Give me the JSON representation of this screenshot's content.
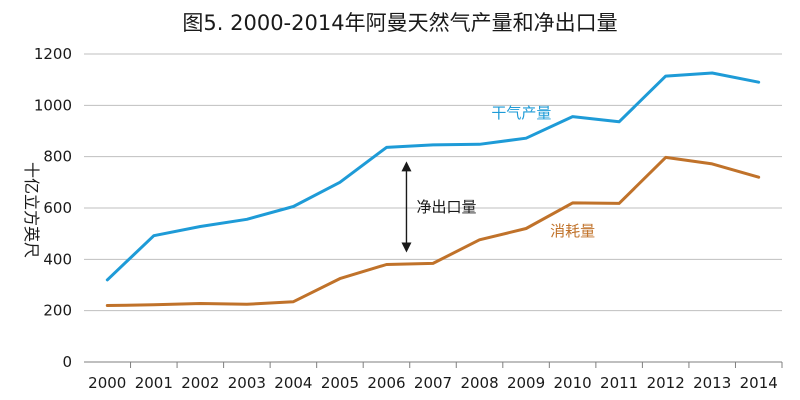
{
  "chart_data": {
    "type": "line",
    "title": "图5. 2000-2014年阿曼天然气产量和净出口量",
    "ylabel": "十亿立方英尺",
    "xlabel": "",
    "ylim": [
      0,
      1200
    ],
    "yticks": [
      0,
      200,
      400,
      600,
      800,
      1000,
      1200
    ],
    "x": [
      "2000",
      "2001",
      "2002",
      "2003",
      "2004",
      "2005",
      "2006",
      "2007",
      "2008",
      "2009",
      "2010",
      "2011",
      "2012",
      "2013",
      "2014"
    ],
    "grid": true,
    "series": [
      {
        "name": "干气产量",
        "color": "#1e9bd7",
        "values": [
          320,
          492,
          528,
          556,
          606,
          700,
          836,
          846,
          848,
          872,
          956,
          936,
          1114,
          1126,
          1090
        ]
      },
      {
        "name": "消耗量",
        "color": "#c0722a",
        "values": [
          220,
          223,
          228,
          225,
          235,
          325,
          380,
          384,
          476,
          520,
          620,
          618,
          797,
          772,
          720
        ]
      }
    ],
    "annotations": [
      {
        "text": "净出口量",
        "x": "2006"
      }
    ]
  }
}
